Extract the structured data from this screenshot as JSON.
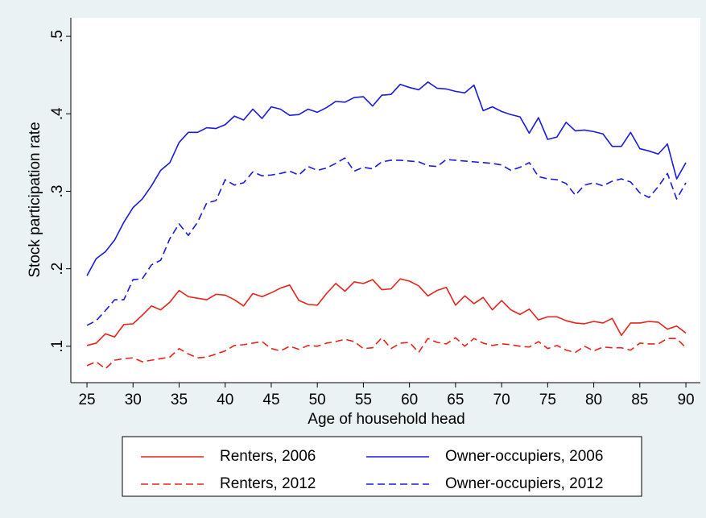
{
  "chart_data": {
    "type": "line",
    "xlabel": "Age of household head",
    "ylabel": "Stock participation rate",
    "x": [
      25,
      26,
      27,
      28,
      29,
      30,
      31,
      32,
      33,
      34,
      35,
      36,
      37,
      38,
      39,
      40,
      41,
      42,
      43,
      44,
      45,
      46,
      47,
      48,
      49,
      50,
      51,
      52,
      53,
      54,
      55,
      56,
      57,
      58,
      59,
      60,
      61,
      62,
      63,
      64,
      65,
      66,
      67,
      68,
      69,
      70,
      71,
      72,
      73,
      74,
      75,
      76,
      77,
      78,
      79,
      80,
      81,
      82,
      83,
      84,
      85,
      86,
      87,
      88,
      89,
      90
    ],
    "xlim": [
      23.25,
      91.57
    ],
    "xticks": [
      25,
      30,
      35,
      40,
      45,
      50,
      55,
      60,
      65,
      70,
      75,
      80,
      85,
      90
    ],
    "ylim": [
      0.053,
      0.524
    ],
    "yticks": [
      {
        "value": 0.1,
        "label": ".1"
      },
      {
        "value": 0.2,
        "label": ".2"
      },
      {
        "value": 0.3,
        "label": ".3"
      },
      {
        "value": 0.4,
        "label": ".4"
      },
      {
        "value": 0.5,
        "label": ".5"
      }
    ],
    "grid": false,
    "series": [
      {
        "name": "Renters, 2006",
        "color": "#e8231a",
        "style": "solid",
        "values": [
          0.101,
          0.104,
          0.116,
          0.112,
          0.128,
          0.129,
          0.14,
          0.152,
          0.147,
          0.157,
          0.172,
          0.164,
          0.162,
          0.16,
          0.167,
          0.166,
          0.16,
          0.152,
          0.168,
          0.164,
          0.169,
          0.175,
          0.179,
          0.159,
          0.154,
          0.153,
          0.168,
          0.181,
          0.171,
          0.183,
          0.181,
          0.186,
          0.173,
          0.174,
          0.187,
          0.184,
          0.178,
          0.165,
          0.172,
          0.176,
          0.153,
          0.165,
          0.155,
          0.163,
          0.147,
          0.159,
          0.147,
          0.141,
          0.148,
          0.134,
          0.138,
          0.138,
          0.133,
          0.13,
          0.129,
          0.132,
          0.13,
          0.136,
          0.114,
          0.13,
          0.13,
          0.132,
          0.131,
          0.122,
          0.126,
          0.117
        ]
      },
      {
        "name": "Owner-occupiers, 2006",
        "color": "#1a1ae0",
        "style": "solid",
        "values": [
          0.191,
          0.213,
          0.222,
          0.237,
          0.26,
          0.279,
          0.29,
          0.307,
          0.327,
          0.337,
          0.363,
          0.376,
          0.376,
          0.382,
          0.381,
          0.386,
          0.397,
          0.392,
          0.406,
          0.394,
          0.409,
          0.406,
          0.398,
          0.399,
          0.406,
          0.402,
          0.408,
          0.416,
          0.415,
          0.421,
          0.422,
          0.41,
          0.424,
          0.425,
          0.438,
          0.434,
          0.431,
          0.441,
          0.433,
          0.432,
          0.429,
          0.427,
          0.437,
          0.404,
          0.409,
          0.403,
          0.399,
          0.396,
          0.375,
          0.395,
          0.367,
          0.37,
          0.389,
          0.378,
          0.379,
          0.377,
          0.374,
          0.358,
          0.358,
          0.376,
          0.355,
          0.352,
          0.348,
          0.361,
          0.316,
          0.337
        ]
      },
      {
        "name": "Renters, 2012",
        "color": "#e8231a",
        "style": "dashed",
        "values": [
          0.075,
          0.08,
          0.071,
          0.082,
          0.084,
          0.085,
          0.08,
          0.082,
          0.084,
          0.086,
          0.097,
          0.09,
          0.085,
          0.086,
          0.09,
          0.094,
          0.101,
          0.102,
          0.104,
          0.106,
          0.097,
          0.094,
          0.1,
          0.096,
          0.101,
          0.1,
          0.104,
          0.106,
          0.109,
          0.106,
          0.097,
          0.098,
          0.111,
          0.097,
          0.104,
          0.105,
          0.092,
          0.11,
          0.105,
          0.103,
          0.111,
          0.1,
          0.11,
          0.104,
          0.101,
          0.103,
          0.102,
          0.1,
          0.099,
          0.106,
          0.097,
          0.101,
          0.095,
          0.092,
          0.1,
          0.094,
          0.099,
          0.098,
          0.098,
          0.095,
          0.104,
          0.103,
          0.103,
          0.11,
          0.11,
          0.098
        ]
      },
      {
        "name": "Owner-occupiers, 2012",
        "color": "#1a1ae0",
        "style": "dashed",
        "values": [
          0.127,
          0.133,
          0.146,
          0.16,
          0.16,
          0.186,
          0.187,
          0.205,
          0.211,
          0.239,
          0.258,
          0.243,
          0.26,
          0.285,
          0.288,
          0.315,
          0.308,
          0.311,
          0.325,
          0.32,
          0.321,
          0.323,
          0.326,
          0.321,
          0.332,
          0.327,
          0.33,
          0.336,
          0.343,
          0.326,
          0.331,
          0.329,
          0.338,
          0.34,
          0.34,
          0.339,
          0.338,
          0.333,
          0.332,
          0.341,
          0.34,
          0.339,
          0.338,
          0.337,
          0.336,
          0.334,
          0.327,
          0.331,
          0.337,
          0.319,
          0.316,
          0.315,
          0.31,
          0.295,
          0.308,
          0.311,
          0.307,
          0.313,
          0.316,
          0.312,
          0.298,
          0.292,
          0.306,
          0.323,
          0.29,
          0.311
        ]
      }
    ]
  }
}
